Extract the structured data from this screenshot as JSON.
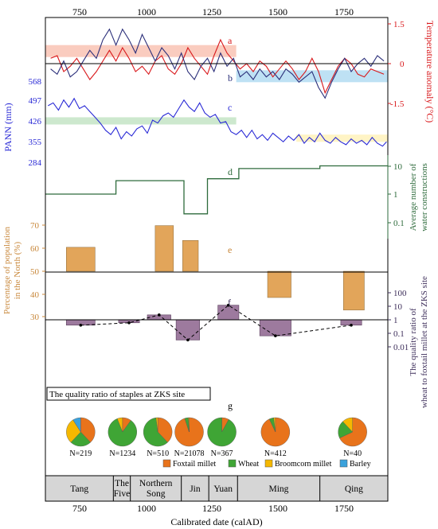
{
  "figure": {
    "top_ticks": [
      "750",
      "1000",
      "1250",
      "1500",
      "1750"
    ],
    "xlabel": "Calibrated date (calAD)",
    "bottom_ticks": [
      "750",
      "1000",
      "1250",
      "1500",
      "1750"
    ],
    "temp_label": "Temperature anomaly (°C)",
    "temp_ticks": [
      "1.5",
      "0",
      "-1.5"
    ],
    "pann_label": "PANN (mm)",
    "pann_ticks": [
      "568",
      "497",
      "426",
      "355",
      "284"
    ],
    "water_label_1": "Average number of",
    "water_label_2": "water constructions",
    "water_ticks": [
      "10",
      "1",
      "0.1"
    ],
    "pop_label_1": "Percentage of population",
    "pop_label_2": "in the North (%)",
    "pop_ticks": [
      "70",
      "60",
      "50",
      "40",
      "30"
    ],
    "qr_label_1": "The quality ratio of",
    "qr_label_2": "wheat to foxtail millet at the ZKS site",
    "qr_ticks": [
      "100",
      "10",
      "1",
      "0.1",
      "0.01"
    ],
    "panel_letters": [
      "a",
      "b",
      "c",
      "d",
      "e",
      "f",
      "g"
    ],
    "staples_title": "The quality ratio of staples at ZKS site",
    "pie_legend": [
      {
        "label": "Foxtail millet",
        "color": "#e8731b"
      },
      {
        "label": "Wheat",
        "color": "#3fa535"
      },
      {
        "label": "Broomcorn millet",
        "color": "#f5b800"
      },
      {
        "label": "Barley",
        "color": "#3aa2dc"
      }
    ],
    "dynasties": [
      {
        "label": "Tang",
        "lines": [
          "Tang"
        ]
      },
      {
        "label": "The Five",
        "lines": [
          "The",
          "Five"
        ]
      },
      {
        "label": "Northern Song",
        "lines": [
          "Northern",
          "Song"
        ]
      },
      {
        "label": "Jin",
        "lines": [
          "Jin"
        ]
      },
      {
        "label": "Yuan",
        "lines": [
          "Yuan"
        ]
      },
      {
        "label": "Ming",
        "lines": [
          "Ming"
        ]
      },
      {
        "label": "Qing",
        "lines": [
          "Qing"
        ]
      }
    ]
  },
  "chart_data": [
    {
      "id": "a",
      "type": "line",
      "ylabel": "Temperature anomaly (°C)",
      "ylim": [
        -1.5,
        1.5
      ],
      "color": "#d9191c",
      "x": [
        620,
        645,
        670,
        695,
        720,
        745,
        770,
        795,
        820,
        845,
        870,
        895,
        920,
        945,
        970,
        995,
        1020,
        1045,
        1070,
        1095,
        1120,
        1145,
        1170,
        1195,
        1220,
        1245,
        1270,
        1295,
        1320,
        1345,
        1370,
        1395,
        1420,
        1445,
        1470,
        1495,
        1520,
        1545,
        1570,
        1595,
        1620,
        1645,
        1670,
        1695,
        1720,
        1745,
        1770,
        1795,
        1820,
        1845,
        1870,
        1895
      ],
      "y": [
        0.2,
        0.3,
        -0.3,
        -0.1,
        0.2,
        -0.2,
        -0.6,
        -0.3,
        0.1,
        0.5,
        0.1,
        0.6,
        0.2,
        -0.3,
        -0.1,
        -0.4,
        0.1,
        0.3,
        -0.2,
        -0.4,
        0.0,
        0.6,
        0.2,
        -0.1,
        -0.4,
        0.3,
        0.9,
        0.4,
        0.1,
        -0.2,
        0.0,
        -0.3,
        0.1,
        -0.1,
        -0.5,
        -0.2,
        0.1,
        -0.2,
        -0.6,
        -0.3,
        0.2,
        -0.3,
        -1.1,
        -0.6,
        -0.1,
        0.2,
        0.0,
        -0.4,
        -0.5,
        -0.2,
        -0.3,
        -0.4
      ],
      "band": {
        "x0": 600,
        "x1": 1330,
        "y0": 0.25,
        "y1": 0.7,
        "color": "#f9c3b4"
      }
    },
    {
      "id": "b",
      "type": "line",
      "ylabel": "Temperature anomaly (°C)",
      "ylim": [
        -1.5,
        1.5
      ],
      "color": "#2b2f7a",
      "x": [
        620,
        645,
        670,
        695,
        720,
        745,
        770,
        795,
        820,
        845,
        870,
        895,
        920,
        945,
        970,
        995,
        1020,
        1045,
        1070,
        1095,
        1120,
        1145,
        1170,
        1195,
        1220,
        1245,
        1270,
        1295,
        1320,
        1345,
        1370,
        1395,
        1420,
        1445,
        1470,
        1495,
        1520,
        1545,
        1570,
        1595,
        1620,
        1645,
        1670,
        1695,
        1720,
        1745,
        1770,
        1795,
        1820,
        1845,
        1870,
        1895
      ],
      "y": [
        -0.2,
        -0.4,
        0.1,
        -0.5,
        -0.3,
        0.1,
        0.5,
        0.2,
        0.9,
        1.3,
        0.7,
        1.3,
        0.9,
        0.4,
        1.1,
        0.6,
        0.1,
        0.6,
        0.3,
        -0.2,
        0.4,
        -0.3,
        -0.6,
        -0.1,
        0.2,
        -0.3,
        0.4,
        -0.1,
        0.2,
        -0.5,
        -0.3,
        -0.6,
        -0.2,
        -0.5,
        -0.3,
        -0.6,
        -0.2,
        -0.4,
        -0.7,
        -0.5,
        -0.3,
        -0.9,
        -1.3,
        -0.7,
        -0.2,
        0.2,
        -0.3,
        0.0,
        0.2,
        -0.1,
        0.3,
        0.1
      ],
      "band": {
        "x0": 1330,
        "x1": 1910,
        "y0": -0.7,
        "y1": -0.25,
        "color": "#b3dcf2"
      }
    },
    {
      "id": "c",
      "type": "line",
      "ylabel": "PANN (mm)",
      "ylim": [
        284,
        568
      ],
      "color": "#2a2ad6",
      "x": [
        610,
        630,
        650,
        670,
        690,
        710,
        730,
        750,
        770,
        790,
        810,
        830,
        850,
        870,
        890,
        910,
        930,
        950,
        970,
        990,
        1010,
        1030,
        1050,
        1070,
        1090,
        1110,
        1130,
        1150,
        1170,
        1190,
        1210,
        1230,
        1250,
        1270,
        1290,
        1310,
        1330,
        1350,
        1370,
        1390,
        1410,
        1430,
        1450,
        1470,
        1490,
        1510,
        1530,
        1550,
        1570,
        1590,
        1610,
        1630,
        1650,
        1670,
        1690,
        1710,
        1730,
        1750,
        1770,
        1790,
        1810,
        1830,
        1850,
        1870,
        1890,
        1905
      ],
      "y": [
        480,
        490,
        465,
        500,
        475,
        505,
        470,
        480,
        460,
        440,
        420,
        395,
        380,
        405,
        365,
        390,
        375,
        400,
        410,
        385,
        430,
        420,
        445,
        455,
        440,
        470,
        500,
        475,
        460,
        490,
        455,
        440,
        450,
        420,
        425,
        390,
        380,
        395,
        370,
        395,
        365,
        380,
        360,
        385,
        370,
        355,
        375,
        360,
        380,
        350,
        370,
        355,
        385,
        360,
        350,
        370,
        355,
        345,
        365,
        350,
        360,
        345,
        370,
        350,
        340,
        355
      ],
      "band_green": {
        "x0": 600,
        "x1": 1330,
        "y0": 415,
        "y1": 440,
        "color": "#c8e6c9"
      },
      "band_yellow": {
        "x0": 1560,
        "x1": 1910,
        "y0": 355,
        "y1": 380,
        "color": "#fff3bf"
      }
    },
    {
      "id": "d",
      "type": "line",
      "ylabel": "Average number of water constructions",
      "yscale": "log",
      "ylim": [
        0.06,
        14
      ],
      "color": "#2e6b3c",
      "step_x": [
        600,
        870,
        870,
        1130,
        1130,
        1220,
        1220,
        1340,
        1340,
        1650,
        1650,
        1910
      ],
      "step_y": [
        1,
        1,
        3,
        3,
        0.2,
        0.2,
        3.5,
        3.5,
        8,
        8,
        10,
        10
      ]
    },
    {
      "id": "e",
      "type": "bar",
      "ylabel": "Percentage of population in the North (%)",
      "ylim": [
        22,
        75
      ],
      "color": "#e2a55a",
      "bars": [
        {
          "x0": 680,
          "x1": 790,
          "base": 50,
          "value": 60.5
        },
        {
          "x0": 1020,
          "x1": 1090,
          "base": 50,
          "value": 70
        },
        {
          "x0": 1125,
          "x1": 1185,
          "base": 50,
          "value": 63.5
        },
        {
          "x0": 1450,
          "x1": 1540,
          "base": 50,
          "value": 38.5
        },
        {
          "x0": 1740,
          "x1": 1820,
          "base": 50,
          "value": 33
        }
      ]
    },
    {
      "id": "f",
      "type": "bar",
      "ylabel": "The quality ratio of wheat to foxtail millet at the ZKS site",
      "yscale": "log",
      "ylim": [
        0.004,
        300
      ],
      "color": "#9d7a9e",
      "bars": [
        {
          "x0": 680,
          "x1": 790,
          "value": 0.4
        },
        {
          "x0": 880,
          "x1": 960,
          "value": 0.6
        },
        {
          "x0": 990,
          "x1": 1080,
          "value": 2.3
        },
        {
          "x0": 1100,
          "x1": 1190,
          "value": 0.032
        },
        {
          "x0": 1260,
          "x1": 1340,
          "value": 12
        },
        {
          "x0": 1420,
          "x1": 1540,
          "value": 0.065
        },
        {
          "x0": 1730,
          "x1": 1810,
          "value": 0.4
        }
      ],
      "trend_x": [
        735,
        920,
        1035,
        1145,
        1300,
        1480,
        1770
      ],
      "trend_y": [
        0.4,
        0.6,
        2.3,
        0.032,
        12,
        0.065,
        0.4
      ]
    },
    {
      "id": "g",
      "type": "pie",
      "title": "The quality ratio of staples at ZKS site",
      "pies": [
        {
          "x": 735,
          "n": "N=219",
          "slices": [
            0.38,
            0.24,
            0.29,
            0.09
          ]
        },
        {
          "x": 895,
          "n": "N=1234",
          "slices": [
            0.1,
            0.84,
            0.06,
            0.0
          ]
        },
        {
          "x": 1030,
          "n": "N=510",
          "slices": [
            0.38,
            0.6,
            0.02,
            0.0
          ]
        },
        {
          "x": 1150,
          "n": "N=21078",
          "slices": [
            0.95,
            0.04,
            0.01,
            0.0
          ]
        },
        {
          "x": 1275,
          "n": "N=367",
          "slices": [
            0.08,
            0.92,
            0.0,
            0.0
          ]
        },
        {
          "x": 1480,
          "n": "N=412",
          "slices": [
            0.93,
            0.05,
            0.02,
            0.0
          ]
        },
        {
          "x": 1775,
          "n": "N=40",
          "slices": [
            0.68,
            0.2,
            0.12,
            0.0
          ]
        }
      ]
    },
    {
      "id": "dynasties",
      "type": "table",
      "boundaries": [
        600,
        860,
        925,
        1120,
        1225,
        1335,
        1650,
        1910
      ],
      "labels": [
        "Tang",
        "The Five",
        "Northern Song",
        "Jin",
        "Yuan",
        "Ming",
        "Qing"
      ]
    }
  ]
}
